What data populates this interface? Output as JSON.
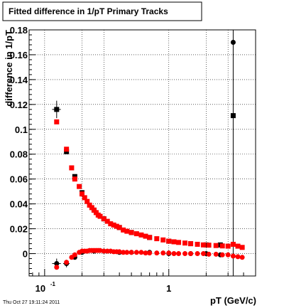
{
  "chart_data": {
    "type": "scatter",
    "title": "Fitted difference in 1/pT  Primary Tracks",
    "xlabel": "pT (GeV/c)",
    "ylabel": "difference in 1/pT",
    "x_scale": "log",
    "xlim": [
      0.075,
      5.0
    ],
    "ylim": [
      -0.018,
      0.18
    ],
    "grid": true,
    "y_ticks": [
      {
        "value": 0,
        "label": "0"
      },
      {
        "value": 0.02,
        "label": "0.02"
      },
      {
        "value": 0.04,
        "label": "0.04"
      },
      {
        "value": 0.06,
        "label": "0.06"
      },
      {
        "value": 0.08,
        "label": "0.08"
      },
      {
        "value": 0.1,
        "label": "0.1"
      },
      {
        "value": 0.12,
        "label": "0.12"
      },
      {
        "value": 0.14,
        "label": "0.14"
      },
      {
        "value": 0.16,
        "label": "0.16"
      },
      {
        "value": 0.18,
        "label": "0.18"
      }
    ],
    "x_ticks": [
      {
        "value": 0.1,
        "base": "10",
        "exp": "-1"
      },
      {
        "value": 1,
        "label": "1"
      }
    ],
    "vertical_line_x": 3.3,
    "series": [
      {
        "color": "#000000",
        "marker": "square",
        "x": [
          0.125,
          0.15,
          0.175,
          0.2,
          0.25,
          0.3,
          0.4,
          0.5,
          0.7,
          1.0,
          1.5,
          2.0,
          2.6,
          3.3
        ],
        "y": [
          0.116,
          0.082,
          0.062,
          0.049,
          0.035,
          0.028,
          0.021,
          0.017,
          0.013,
          0.01,
          0.008,
          0.007,
          0.007,
          0.111
        ]
      },
      {
        "color": "#000000",
        "marker": "circle",
        "x": [
          0.125,
          0.15,
          0.175,
          0.2,
          0.25,
          0.3,
          0.4,
          0.5,
          0.7,
          1.0,
          1.5,
          2.0,
          2.6,
          3.3
        ],
        "y": [
          -0.008,
          -0.008,
          -0.003,
          0.001,
          0.002,
          0.002,
          0.001,
          0.001,
          0.001,
          0.0,
          0.0,
          0.0,
          -0.001,
          0.17
        ]
      },
      {
        "color": "#ff0000",
        "marker": "square",
        "x": [
          0.125,
          0.15,
          0.165,
          0.175,
          0.19,
          0.2,
          0.21,
          0.22,
          0.23,
          0.24,
          0.25,
          0.26,
          0.27,
          0.28,
          0.3,
          0.32,
          0.34,
          0.36,
          0.38,
          0.4,
          0.43,
          0.46,
          0.5,
          0.55,
          0.6,
          0.65,
          0.7,
          0.8,
          0.9,
          1.0,
          1.1,
          1.2,
          1.35,
          1.5,
          1.7,
          1.9,
          2.1,
          2.4,
          2.7,
          3.0,
          3.3,
          3.6,
          3.9
        ],
        "y": [
          0.106,
          0.084,
          0.069,
          0.06,
          0.054,
          0.048,
          0.045,
          0.042,
          0.039,
          0.037,
          0.035,
          0.033,
          0.031,
          0.03,
          0.028,
          0.026,
          0.024,
          0.023,
          0.022,
          0.021,
          0.019,
          0.018,
          0.017,
          0.016,
          0.015,
          0.014,
          0.013,
          0.012,
          0.011,
          0.01,
          0.0095,
          0.009,
          0.0085,
          0.008,
          0.0075,
          0.007,
          0.0068,
          0.0065,
          0.0062,
          0.006,
          0.0075,
          0.006,
          0.005
        ]
      },
      {
        "color": "#ff0000",
        "marker": "circle",
        "x": [
          0.125,
          0.15,
          0.165,
          0.175,
          0.19,
          0.2,
          0.21,
          0.22,
          0.23,
          0.24,
          0.25,
          0.26,
          0.27,
          0.28,
          0.3,
          0.32,
          0.34,
          0.36,
          0.38,
          0.4,
          0.43,
          0.46,
          0.5,
          0.55,
          0.6,
          0.65,
          0.7,
          0.8,
          0.9,
          1.0,
          1.1,
          1.2,
          1.35,
          1.5,
          1.7,
          1.9,
          2.1,
          2.4,
          2.7,
          3.0,
          3.3,
          3.6,
          3.9
        ],
        "y": [
          -0.011,
          -0.007,
          -0.003,
          -0.001,
          0.001,
          0.002,
          0.002,
          0.002,
          0.0025,
          0.0025,
          0.0025,
          0.0025,
          0.0025,
          0.0025,
          0.002,
          0.002,
          0.002,
          0.0015,
          0.0015,
          0.0015,
          0.001,
          0.001,
          0.001,
          0.001,
          0.001,
          0.0005,
          0.0005,
          0.0005,
          0.0005,
          0.0005,
          0.0,
          0.0,
          0.0,
          0.0,
          0.0,
          0.0,
          -0.0005,
          -0.0005,
          -0.001,
          -0.001,
          -0.002,
          -0.0025,
          -0.003
        ]
      }
    ],
    "error_bars": [
      {
        "x": 0.125,
        "y": 0.116,
        "yerr": 0.007,
        "xerr_frac": 0.08
      },
      {
        "x": 0.125,
        "y": -0.008,
        "yerr": 0.004,
        "xerr_frac": 0.08
      },
      {
        "x": 0.15,
        "y": -0.008,
        "yerr": 0.003,
        "xerr_frac": 0.06
      }
    ]
  },
  "footer": {
    "timestamp": "Thu Oct 27 19:11:24 2011"
  }
}
